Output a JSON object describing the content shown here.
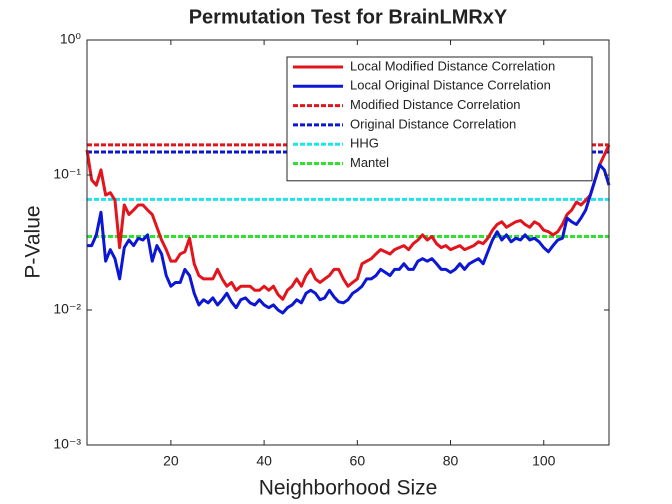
{
  "chart_data": {
    "type": "line",
    "title": "Permutation Test for BrainLMRxY",
    "xlabel": "Neighborhood Size",
    "ylabel": "P-Value",
    "yscale": "log",
    "xlim": [
      2,
      114
    ],
    "xticks": [
      20,
      40,
      60,
      80,
      100
    ],
    "ylim": [
      0.001,
      1
    ],
    "yticks": [
      {
        "value": 0.001,
        "label": "10⁻³"
      },
      {
        "value": 0.01,
        "label": "10⁻²"
      },
      {
        "value": 0.1,
        "label": "10⁻¹"
      },
      {
        "value": 1,
        "label": "10⁰"
      }
    ],
    "legend": "northeast",
    "x": [
      2,
      3,
      4,
      5,
      6,
      7,
      8,
      9,
      10,
      11,
      12,
      13,
      14,
      15,
      16,
      17,
      18,
      19,
      20,
      21,
      22,
      23,
      24,
      25,
      26,
      27,
      28,
      29,
      30,
      31,
      32,
      33,
      34,
      35,
      36,
      37,
      38,
      39,
      40,
      41,
      42,
      43,
      44,
      45,
      46,
      47,
      48,
      49,
      50,
      51,
      52,
      53,
      54,
      55,
      56,
      57,
      58,
      59,
      60,
      61,
      62,
      63,
      64,
      65,
      66,
      67,
      68,
      69,
      70,
      71,
      72,
      73,
      74,
      75,
      76,
      77,
      78,
      79,
      80,
      81,
      82,
      83,
      84,
      85,
      86,
      87,
      88,
      89,
      90,
      91,
      92,
      93,
      94,
      95,
      96,
      97,
      98,
      99,
      100,
      101,
      102,
      103,
      104,
      105,
      106,
      107,
      108,
      109,
      110,
      111,
      112,
      113,
      114
    ],
    "series": [
      {
        "name": "Local Modified Distance Correlation",
        "color": "#e3141b",
        "linestyle": "solid",
        "values": [
          0.153,
          0.092,
          0.084,
          0.109,
          0.071,
          0.074,
          0.065,
          0.029,
          0.06,
          0.051,
          0.055,
          0.06,
          0.06,
          0.055,
          0.051,
          0.041,
          0.033,
          0.028,
          0.023,
          0.023,
          0.026,
          0.027,
          0.034,
          0.022,
          0.018,
          0.017,
          0.017,
          0.017,
          0.02,
          0.017,
          0.015,
          0.016,
          0.014,
          0.015,
          0.015,
          0.015,
          0.014,
          0.014,
          0.015,
          0.014,
          0.015,
          0.013,
          0.012,
          0.014,
          0.015,
          0.017,
          0.015,
          0.018,
          0.02,
          0.017,
          0.016,
          0.017,
          0.018,
          0.02,
          0.02,
          0.017,
          0.015,
          0.016,
          0.017,
          0.022,
          0.023,
          0.024,
          0.026,
          0.028,
          0.027,
          0.026,
          0.028,
          0.029,
          0.03,
          0.028,
          0.031,
          0.033,
          0.036,
          0.033,
          0.035,
          0.031,
          0.029,
          0.03,
          0.028,
          0.029,
          0.03,
          0.028,
          0.029,
          0.03,
          0.032,
          0.031,
          0.034,
          0.039,
          0.043,
          0.045,
          0.041,
          0.043,
          0.045,
          0.046,
          0.043,
          0.041,
          0.045,
          0.043,
          0.039,
          0.038,
          0.036,
          0.038,
          0.043,
          0.051,
          0.055,
          0.063,
          0.06,
          0.065,
          0.071,
          0.092,
          0.119,
          0.141,
          0.167
        ]
      },
      {
        "name": "Local Original Distance Correlation",
        "color": "#0c17d6",
        "linestyle": "solid",
        "values": [
          0.03,
          0.03,
          0.036,
          0.053,
          0.023,
          0.028,
          0.024,
          0.017,
          0.029,
          0.033,
          0.03,
          0.034,
          0.033,
          0.036,
          0.023,
          0.03,
          0.026,
          0.018,
          0.015,
          0.016,
          0.016,
          0.02,
          0.018,
          0.0133,
          0.0109,
          0.0119,
          0.0113,
          0.0123,
          0.0109,
          0.0119,
          0.0133,
          0.0115,
          0.0104,
          0.0119,
          0.0123,
          0.0113,
          0.0109,
          0.0119,
          0.0109,
          0.0104,
          0.0109,
          0.01,
          0.0095,
          0.0104,
          0.0109,
          0.0119,
          0.0113,
          0.0133,
          0.014,
          0.0133,
          0.0119,
          0.0123,
          0.014,
          0.0125,
          0.0115,
          0.0113,
          0.0119,
          0.0133,
          0.014,
          0.015,
          0.017,
          0.017,
          0.018,
          0.02,
          0.019,
          0.018,
          0.02,
          0.02,
          0.022,
          0.02,
          0.02,
          0.023,
          0.024,
          0.023,
          0.024,
          0.022,
          0.02,
          0.02,
          0.019,
          0.02,
          0.022,
          0.02,
          0.022,
          0.023,
          0.024,
          0.022,
          0.027,
          0.033,
          0.038,
          0.033,
          0.036,
          0.032,
          0.034,
          0.033,
          0.036,
          0.033,
          0.034,
          0.032,
          0.029,
          0.027,
          0.03,
          0.033,
          0.034,
          0.048,
          0.045,
          0.043,
          0.048,
          0.055,
          0.071,
          0.092,
          0.119,
          0.109,
          0.084
        ]
      }
    ],
    "reference_lines": [
      {
        "name": "Modified Distance Correlation",
        "color": "#e3141b",
        "linestyle": "dashed",
        "value": 0.167
      },
      {
        "name": "Original Distance Correlation",
        "color": "#0c17d6",
        "linestyle": "dashed",
        "value": 0.148
      },
      {
        "name": "HHG",
        "color": "#1ee3ee",
        "linestyle": "dashed",
        "value": 0.066
      },
      {
        "name": "Mantel",
        "color": "#2ee22e",
        "linestyle": "dashed",
        "value": 0.035
      }
    ]
  }
}
